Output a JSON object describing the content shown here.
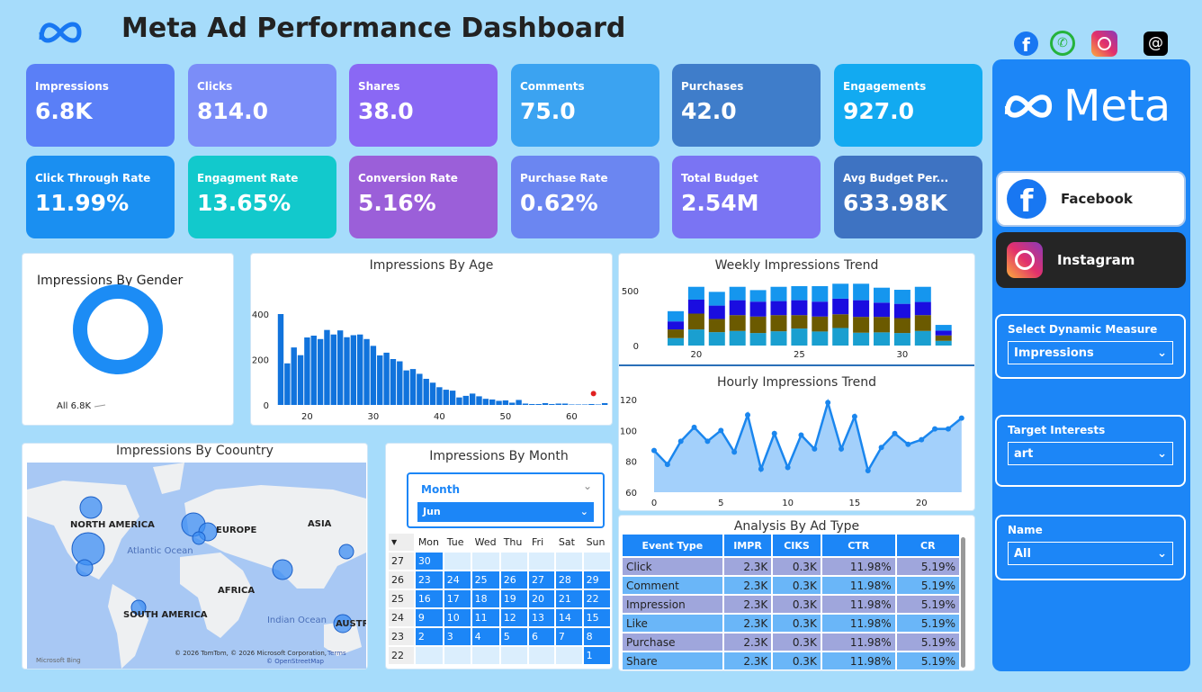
{
  "header": {
    "title": "Meta Ad Performance Dashboard",
    "social_icons": [
      "facebook-icon",
      "whatsapp-icon",
      "instagram-icon",
      "threads-icon"
    ]
  },
  "kpis": [
    {
      "label": "Impressions",
      "value": "6.8K",
      "color": "#5a7ff7"
    },
    {
      "label": "Clicks",
      "value": "814.0",
      "color": "#7b8df8"
    },
    {
      "label": "Shares",
      "value": "38.0",
      "color": "#8a68f4"
    },
    {
      "label": "Comments",
      "value": "75.0",
      "color": "#3ba3f1"
    },
    {
      "label": "Purchases",
      "value": "42.0",
      "color": "#3f7dca"
    },
    {
      "label": "Engagements",
      "value": "927.0",
      "color": "#12aaf1"
    },
    {
      "label": "Click Through Rate",
      "value": "11.99%",
      "color": "#1a8ff1"
    },
    {
      "label": "Engagment Rate",
      "value": "13.65%",
      "color": "#12c9cc"
    },
    {
      "label": "Conversion Rate",
      "value": "5.16%",
      "color": "#9b5fd9"
    },
    {
      "label": "Purchase Rate",
      "value": "0.62%",
      "color": "#6b86f1"
    },
    {
      "label": "Total Budget",
      "value": "2.54M",
      "color": "#7a74f3"
    },
    {
      "label": "Avg Budget Per...",
      "value": "633.98K",
      "color": "#3e73c2"
    }
  ],
  "sidebar": {
    "logo_text": "Meta",
    "facebook": "Facebook",
    "instagram": "Instagram",
    "slicers": [
      {
        "label": "Select Dynamic Measure",
        "value": "Impressions"
      },
      {
        "label": "Target Interests",
        "value": "art"
      },
      {
        "label": "Name",
        "value": "All"
      }
    ]
  },
  "gender": {
    "title": "Impressions By Gender",
    "label": "All 6.8K"
  },
  "country": {
    "title": "Impressions By Coountry",
    "labels": [
      "NORTH AMERICA",
      "EUROPE",
      "ASIA",
      "AFRICA",
      "SOUTH AMERICA",
      "AUSTR"
    ],
    "oceans": [
      "Atlantic Ocean",
      "Indian Ocean"
    ],
    "bing": "Microsoft Bing",
    "attribution": "© 2026 TomTom, © 2026 Microsoft Corporation,",
    "terms": "Terms",
    "osm": "© OpenStreetMap"
  },
  "month": {
    "title": "Impressions By Month",
    "slicer_label": "Month",
    "slicer_value": "Jun",
    "days": [
      "Mon",
      "Tue",
      "Wed",
      "Thu",
      "Fri",
      "Sat",
      "Sun"
    ],
    "weeks": [
      {
        "wk": "27",
        "cells": [
          "30",
          "",
          "",
          "",
          "",
          "",
          ""
        ]
      },
      {
        "wk": "26",
        "cells": [
          "23",
          "24",
          "25",
          "26",
          "27",
          "28",
          "29"
        ]
      },
      {
        "wk": "25",
        "cells": [
          "16",
          "17",
          "18",
          "19",
          "20",
          "21",
          "22"
        ]
      },
      {
        "wk": "24",
        "cells": [
          "9",
          "10",
          "11",
          "12",
          "13",
          "14",
          "15"
        ]
      },
      {
        "wk": "23",
        "cells": [
          "2",
          "3",
          "4",
          "5",
          "6",
          "7",
          "8"
        ]
      },
      {
        "wk": "22",
        "cells": [
          "",
          "",
          "",
          "",
          "",
          "",
          "1"
        ]
      }
    ]
  },
  "table": {
    "title": "Analysis By Ad Type",
    "columns": [
      "Event Type",
      "IMPR",
      "CIKS",
      "CTR",
      "CR"
    ],
    "rows": [
      [
        "Click",
        "2.3K",
        "0.3K",
        "11.98%",
        "5.19%"
      ],
      [
        "Comment",
        "2.3K",
        "0.3K",
        "11.98%",
        "5.19%"
      ],
      [
        "Impression",
        "2.3K",
        "0.3K",
        "11.98%",
        "5.19%"
      ],
      [
        "Like",
        "2.3K",
        "0.3K",
        "11.98%",
        "5.19%"
      ],
      [
        "Purchase",
        "2.3K",
        "0.3K",
        "11.98%",
        "5.19%"
      ],
      [
        "Share",
        "2.3K",
        "0.3K",
        "11.98%",
        "5.19%"
      ]
    ]
  },
  "chart_data": [
    {
      "type": "bar",
      "title": "Impressions By Age",
      "x": [
        16,
        17,
        18,
        19,
        20,
        21,
        22,
        23,
        24,
        25,
        26,
        27,
        28,
        29,
        30,
        31,
        32,
        33,
        34,
        35,
        36,
        37,
        38,
        39,
        40,
        41,
        42,
        43,
        44,
        45,
        46,
        47,
        48,
        49,
        50,
        51,
        52,
        53,
        54,
        55,
        56,
        57,
        58,
        59,
        60,
        61,
        62,
        63,
        64,
        65
      ],
      "values": [
        400,
        183,
        253,
        219,
        297,
        305,
        290,
        330,
        310,
        328,
        298,
        307,
        310,
        290,
        260,
        218,
        230,
        202,
        192,
        152,
        158,
        137,
        115,
        98,
        78,
        67,
        63,
        33,
        40,
        50,
        38,
        27,
        24,
        18,
        20,
        10,
        22,
        6,
        4,
        4,
        8,
        4,
        6,
        6,
        2,
        2,
        2,
        4,
        2,
        8
      ],
      "anomaly": {
        "x": 63,
        "y": 50,
        "color": "#e02020"
      },
      "xticks": [
        20,
        30,
        40,
        50,
        60
      ],
      "yticks": [
        0,
        200,
        400
      ],
      "ylim": [
        0,
        400
      ],
      "color": "#1173dc"
    },
    {
      "type": "bar",
      "stacked": true,
      "title": "Weekly Impressions Trend",
      "categories": [
        19,
        20,
        21,
        22,
        23,
        24,
        25,
        26,
        27,
        28,
        29,
        30,
        31,
        32
      ],
      "series": [
        {
          "color": "#1a9fd0",
          "values": [
            68,
            147,
            122,
            133,
            114,
            130,
            155,
            128,
            160,
            117,
            120,
            114,
            133,
            43
          ]
        },
        {
          "color": "#6b5a00",
          "values": [
            79,
            144,
            120,
            144,
            150,
            147,
            122,
            136,
            125,
            144,
            141,
            136,
            144,
            49
          ]
        },
        {
          "color": "#1a0de0",
          "values": [
            73,
            127,
            122,
            136,
            136,
            128,
            136,
            136,
            142,
            152,
            130,
            130,
            120,
            44
          ]
        },
        {
          "color": "#1596ee",
          "values": [
            93,
            117,
            125,
            122,
            105,
            130,
            128,
            141,
            136,
            150,
            136,
            128,
            138,
            52
          ]
        }
      ],
      "xticks": [
        20,
        25,
        30
      ],
      "yticks": [
        0,
        500
      ]
    },
    {
      "type": "area",
      "title": "Hourly Impressions Trend",
      "x": [
        0,
        1,
        2,
        3,
        4,
        5,
        6,
        7,
        8,
        9,
        10,
        11,
        12,
        13,
        14,
        15,
        16,
        17,
        18,
        19,
        20,
        21,
        22,
        23
      ],
      "values": [
        87,
        78,
        93,
        102,
        93,
        100,
        86,
        110,
        75,
        98,
        76,
        97,
        88,
        118,
        88,
        109,
        74,
        89,
        98,
        91,
        94,
        101,
        101,
        108
      ],
      "xticks": [
        0,
        5,
        10,
        15,
        20
      ],
      "yticks": [
        60,
        80,
        100,
        120
      ],
      "ylim": [
        60,
        120
      ],
      "color": "#1a86ee",
      "fill": "#a3d0fb"
    }
  ]
}
